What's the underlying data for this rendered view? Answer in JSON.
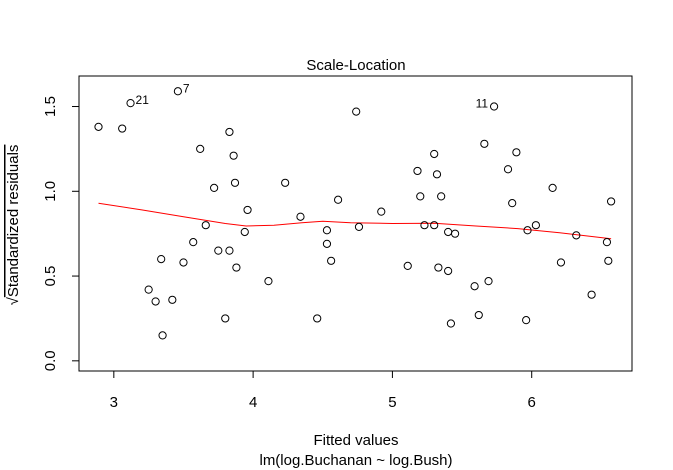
{
  "chart_data": {
    "type": "scatter",
    "title": "Scale-Location",
    "xlabel": "Fitted values",
    "subtitle": "lm(log.Buchanan ~ log.Bush)",
    "ylabel_text": "Standardized residuals",
    "ylabel_prefix": "√",
    "xlim": [
      2.75,
      6.72
    ],
    "ylim": [
      -0.06,
      1.68
    ],
    "xticks": [
      3,
      4,
      5,
      6
    ],
    "xtick_labels": [
      "3",
      "4",
      "5",
      "6"
    ],
    "yticks": [
      0.0,
      0.5,
      1.0,
      1.5
    ],
    "ytick_labels": [
      "0.0",
      "0.5",
      "1.0",
      "1.5"
    ],
    "grid": false,
    "point_color": "#000000",
    "smooth_color": "#ff0000",
    "points": [
      {
        "x": 2.89,
        "y": 1.38
      },
      {
        "x": 3.06,
        "y": 1.37
      },
      {
        "x": 3.12,
        "y": 1.52,
        "label": "21"
      },
      {
        "x": 3.25,
        "y": 0.42
      },
      {
        "x": 3.3,
        "y": 0.35
      },
      {
        "x": 3.34,
        "y": 0.6
      },
      {
        "x": 3.35,
        "y": 0.15
      },
      {
        "x": 3.42,
        "y": 0.36
      },
      {
        "x": 3.46,
        "y": 1.59,
        "label": "7"
      },
      {
        "x": 3.5,
        "y": 0.58
      },
      {
        "x": 3.57,
        "y": 0.7
      },
      {
        "x": 3.62,
        "y": 1.25
      },
      {
        "x": 3.66,
        "y": 0.8
      },
      {
        "x": 3.72,
        "y": 1.02
      },
      {
        "x": 3.75,
        "y": 0.65
      },
      {
        "x": 3.8,
        "y": 0.25
      },
      {
        "x": 3.83,
        "y": 1.35
      },
      {
        "x": 3.83,
        "y": 0.65
      },
      {
        "x": 3.86,
        "y": 1.21
      },
      {
        "x": 3.87,
        "y": 1.05
      },
      {
        "x": 3.88,
        "y": 0.55
      },
      {
        "x": 3.94,
        "y": 0.76
      },
      {
        "x": 3.96,
        "y": 0.89
      },
      {
        "x": 4.11,
        "y": 0.47
      },
      {
        "x": 4.23,
        "y": 1.05
      },
      {
        "x": 4.34,
        "y": 0.85
      },
      {
        "x": 4.46,
        "y": 0.25
      },
      {
        "x": 4.53,
        "y": 0.77
      },
      {
        "x": 4.53,
        "y": 0.69
      },
      {
        "x": 4.56,
        "y": 0.59
      },
      {
        "x": 4.61,
        "y": 0.95
      },
      {
        "x": 4.74,
        "y": 1.47
      },
      {
        "x": 4.76,
        "y": 0.79
      },
      {
        "x": 4.92,
        "y": 0.88
      },
      {
        "x": 5.11,
        "y": 0.56
      },
      {
        "x": 5.18,
        "y": 1.12
      },
      {
        "x": 5.2,
        "y": 0.97
      },
      {
        "x": 5.23,
        "y": 0.8
      },
      {
        "x": 5.3,
        "y": 1.22
      },
      {
        "x": 5.3,
        "y": 0.8
      },
      {
        "x": 5.32,
        "y": 1.1
      },
      {
        "x": 5.33,
        "y": 0.55
      },
      {
        "x": 5.35,
        "y": 0.97
      },
      {
        "x": 5.4,
        "y": 0.53
      },
      {
        "x": 5.4,
        "y": 0.76
      },
      {
        "x": 5.42,
        "y": 0.22
      },
      {
        "x": 5.45,
        "y": 0.75
      },
      {
        "x": 5.59,
        "y": 0.44
      },
      {
        "x": 5.62,
        "y": 0.27
      },
      {
        "x": 5.66,
        "y": 1.28
      },
      {
        "x": 5.69,
        "y": 0.47
      },
      {
        "x": 5.73,
        "y": 1.5,
        "label": "11"
      },
      {
        "x": 5.83,
        "y": 1.13
      },
      {
        "x": 5.86,
        "y": 0.93
      },
      {
        "x": 5.89,
        "y": 1.23
      },
      {
        "x": 5.96,
        "y": 0.24
      },
      {
        "x": 5.97,
        "y": 0.77
      },
      {
        "x": 6.03,
        "y": 0.8
      },
      {
        "x": 6.15,
        "y": 1.02
      },
      {
        "x": 6.21,
        "y": 0.58
      },
      {
        "x": 6.32,
        "y": 0.74
      },
      {
        "x": 6.43,
        "y": 0.39
      },
      {
        "x": 6.54,
        "y": 0.7
      },
      {
        "x": 6.55,
        "y": 0.59
      },
      {
        "x": 6.57,
        "y": 0.94
      }
    ],
    "smooth_line": [
      {
        "x": 2.89,
        "y": 0.93
      },
      {
        "x": 3.2,
        "y": 0.89
      },
      {
        "x": 3.5,
        "y": 0.85
      },
      {
        "x": 3.8,
        "y": 0.81
      },
      {
        "x": 3.95,
        "y": 0.795
      },
      {
        "x": 4.15,
        "y": 0.8
      },
      {
        "x": 4.35,
        "y": 0.815
      },
      {
        "x": 4.5,
        "y": 0.823
      },
      {
        "x": 4.7,
        "y": 0.815
      },
      {
        "x": 5.0,
        "y": 0.81
      },
      {
        "x": 5.3,
        "y": 0.812
      },
      {
        "x": 5.6,
        "y": 0.795
      },
      {
        "x": 5.9,
        "y": 0.78
      },
      {
        "x": 6.2,
        "y": 0.755
      },
      {
        "x": 6.57,
        "y": 0.72
      }
    ]
  }
}
